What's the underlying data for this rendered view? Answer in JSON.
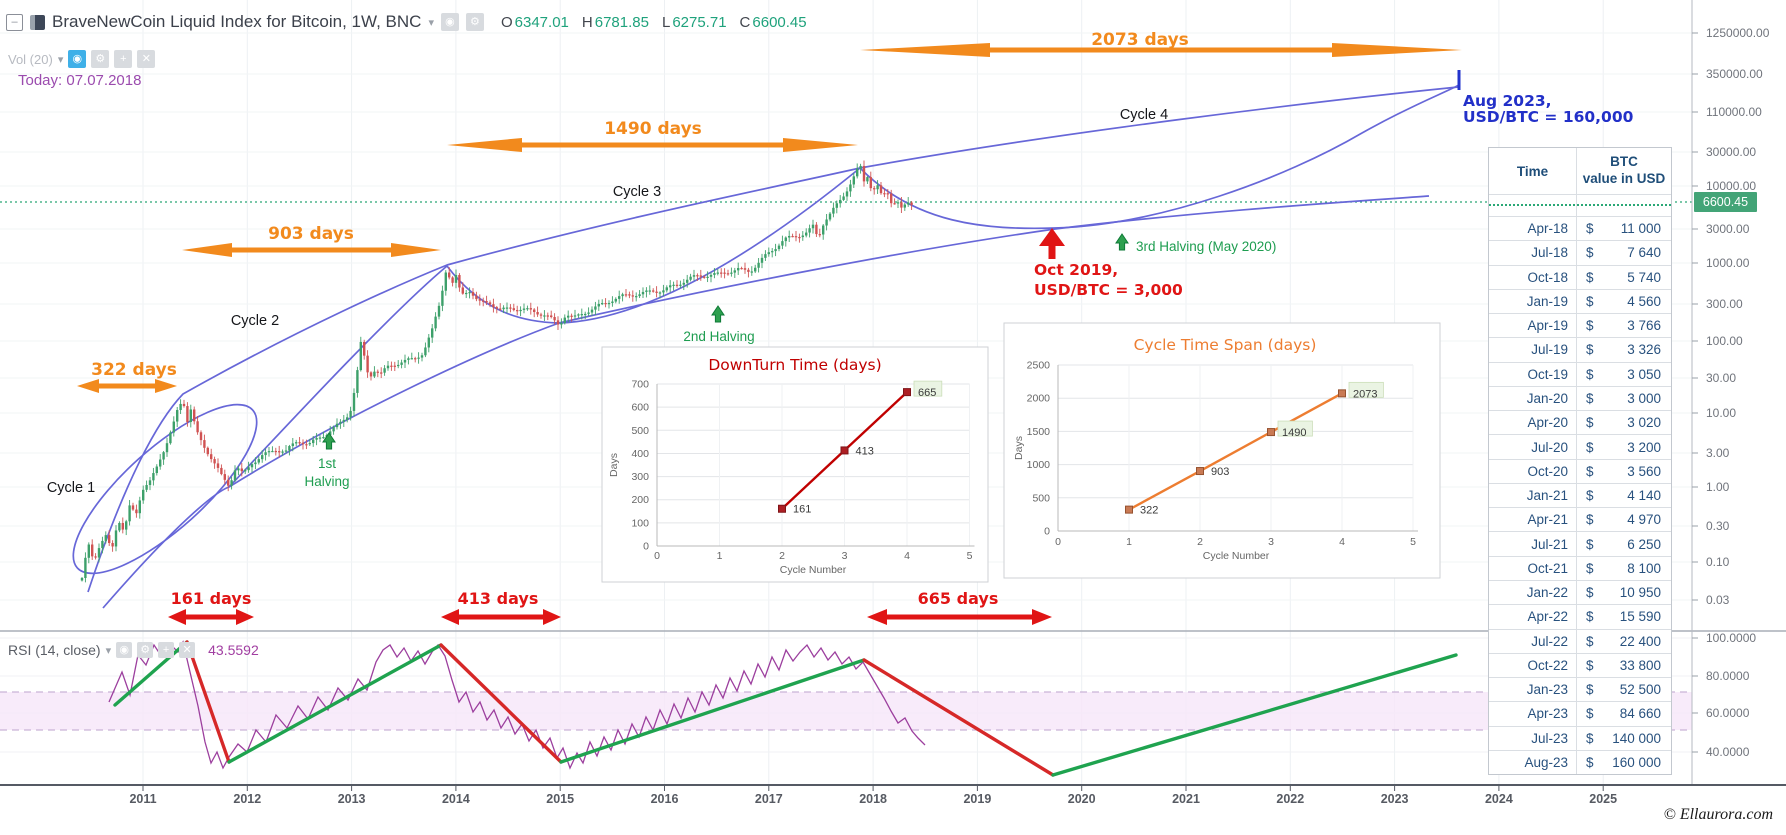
{
  "header": {
    "title": "BraveNewCoin Liquid Index for Bitcoin, 1W, BNC",
    "ohlc": [
      {
        "k": "O",
        "v": "6347.01"
      },
      {
        "k": "H",
        "v": "6781.85"
      },
      {
        "k": "L",
        "v": "6275.71"
      },
      {
        "k": "C",
        "v": "6600.45"
      }
    ],
    "vol_label": "Vol (20)",
    "eye_icon": "◉",
    "gear_icon": "⚙",
    "plus_icon": "+",
    "close_icon": "✕"
  },
  "today": {
    "text": "Today: 07.07.2018"
  },
  "price_scale": {
    "badge": "6600.45",
    "ticks": [
      "1250000.00",
      "350000.00",
      "110000.00",
      "30000.00",
      "10000.00",
      "3000.00",
      "1000.00",
      "300.00",
      "100.00",
      "30.00",
      "10.00",
      "3.00",
      "1.00",
      "0.30",
      "0.10",
      "0.03"
    ]
  },
  "rsi": {
    "label": "RSI (14, close)",
    "value": "43.5592",
    "ticks": [
      "100.0000",
      "80.0000",
      "60.0000",
      "40.0000"
    ]
  },
  "time_axis": {
    "years": [
      "2011",
      "2012",
      "2013",
      "2014",
      "2015",
      "2016",
      "2017",
      "2018",
      "2019",
      "2020",
      "2021",
      "2022",
      "2023",
      "2024",
      "2025"
    ]
  },
  "annotations": {
    "cycle_span_labels": [
      "322 days",
      "903 days",
      "1490 days",
      "2073 days"
    ],
    "downturn_labels": [
      "161 days",
      "413 days",
      "665 days"
    ],
    "cycle_labels": [
      "Cycle 1",
      "Cycle 2",
      "Cycle 3",
      "Cycle 4"
    ],
    "halvings": [
      [
        "1st",
        "Halving"
      ],
      [
        "2nd Halving"
      ],
      [
        "3rd Halving (May 2020)"
      ]
    ],
    "callout_red": [
      "Oct 2019,",
      "USD/BTC = 3,000"
    ],
    "callout_blue": [
      "Aug 2023,",
      "USD/BTC = 160,000"
    ]
  },
  "table": {
    "header_col1": "Time",
    "header_col2_line1": "BTC",
    "header_col2_line2": "value in USD",
    "currency": "$"
  },
  "footer": {
    "copyright": "© Ellaurora.com"
  },
  "colors": {
    "orange": "#f28a1d",
    "red": "#e01515",
    "halving_green": "#1e9d50",
    "blue_callout": "#2230c8",
    "curve_blue": "#6767d8",
    "dotted_green": "#2aa876",
    "badge_green": "#43a477",
    "candle_up": "#3da06a",
    "candle_down": "#d05252",
    "rsi_purple": "#9c3f9e",
    "trend_green": "#1fa34f",
    "trend_red": "#d62828",
    "downturn_red": "#c00000",
    "cyclespan_orange": "#ed7d31"
  },
  "chart_data": [
    {
      "id": "main-price",
      "type": "candlestick",
      "scale": "log",
      "title": "BraveNewCoin Liquid Index for Bitcoin, 1W, BNC",
      "last_bar": {
        "open": 6347.01,
        "high": 6781.85,
        "low": 6275.71,
        "close": 6600.45
      },
      "price_axis_ticks": [
        1250000,
        350000,
        110000,
        30000,
        10000,
        3000,
        1000,
        300,
        100,
        30,
        10,
        3,
        1,
        0.3,
        0.1,
        0.03
      ],
      "x_years": [
        2011,
        2025
      ],
      "approx_price_path": [
        [
          "2010-08",
          0.4
        ],
        [
          "2011-06",
          30
        ],
        [
          "2011-11",
          2.5
        ],
        [
          "2013-04",
          230
        ],
        [
          "2013-12",
          1150
        ],
        [
          "2015-01",
          180
        ],
        [
          "2016-07",
          660
        ],
        [
          "2017-12",
          19000
        ],
        [
          "2018-07",
          6600
        ]
      ],
      "cycle_spans_days": [
        322,
        903,
        1490,
        2073
      ],
      "downturn_spans_days": [
        161,
        413,
        665
      ],
      "halving_events": [
        "1st Halving",
        "2nd Halving",
        "3rd Halving (May 2020)"
      ],
      "projections": [
        "Oct 2019, USD/BTC = 3,000",
        "Aug 2023, USD/BTC = 160,000"
      ]
    },
    {
      "id": "downturn",
      "type": "scatter",
      "title": "DownTurn Time (days)",
      "xlabel": "Cycle Number",
      "ylabel": "Days",
      "x": [
        2,
        3,
        4
      ],
      "values": [
        161,
        413,
        665
      ],
      "xlim": [
        0,
        5
      ],
      "ylim": [
        0,
        700
      ],
      "ytick_step": 100,
      "boxed_labels": [
        "665"
      ]
    },
    {
      "id": "cycle-span",
      "type": "scatter",
      "title": "Cycle Time Span (days)",
      "xlabel": "Cycle Number",
      "ylabel": "Days",
      "x": [
        1,
        2,
        3,
        4
      ],
      "values": [
        322,
        903,
        1490,
        2073
      ],
      "xlim": [
        0,
        5
      ],
      "ylim": [
        0,
        2500
      ],
      "ytick_step": 500,
      "boxed_labels": [
        "1490",
        "2073"
      ]
    },
    {
      "id": "rsi",
      "type": "line",
      "title": "RSI (14, close)",
      "last_value": 43.5592,
      "visible_ticks": [
        100,
        80,
        60,
        40
      ],
      "band": [
        692,
        730
      ]
    },
    {
      "id": "forecast-table",
      "type": "table",
      "columns": [
        "Time",
        "BTC value in USD"
      ],
      "rows": [
        {
          "t": "Apr-18",
          "v": "11 000"
        },
        {
          "t": "Jul-18",
          "v": "7 640"
        },
        {
          "t": "Oct-18",
          "v": "5 740"
        },
        {
          "t": "Jan-19",
          "v": "4 560"
        },
        {
          "t": "Apr-19",
          "v": "3 766"
        },
        {
          "t": "Jul-19",
          "v": "3 326"
        },
        {
          "t": "Oct-19",
          "v": "3 050"
        },
        {
          "t": "Jan-20",
          "v": "3 000"
        },
        {
          "t": "Apr-20",
          "v": "3 020"
        },
        {
          "t": "Jul-20",
          "v": "3 200"
        },
        {
          "t": "Oct-20",
          "v": "3 560"
        },
        {
          "t": "Jan-21",
          "v": "4 140"
        },
        {
          "t": "Apr-21",
          "v": "4 970"
        },
        {
          "t": "Jul-21",
          "v": "6 250"
        },
        {
          "t": "Oct-21",
          "v": "8 100"
        },
        {
          "t": "Jan-22",
          "v": "10 950"
        },
        {
          "t": "Apr-22",
          "v": "15 590"
        },
        {
          "t": "Jul-22",
          "v": "22 400"
        },
        {
          "t": "Oct-22",
          "v": "33 800"
        },
        {
          "t": "Jan-23",
          "v": "52 500"
        },
        {
          "t": "Apr-23",
          "v": "84 660"
        },
        {
          "t": "Jul-23",
          "v": "140 000"
        },
        {
          "t": "Aug-23",
          "v": "160 000"
        }
      ]
    }
  ]
}
